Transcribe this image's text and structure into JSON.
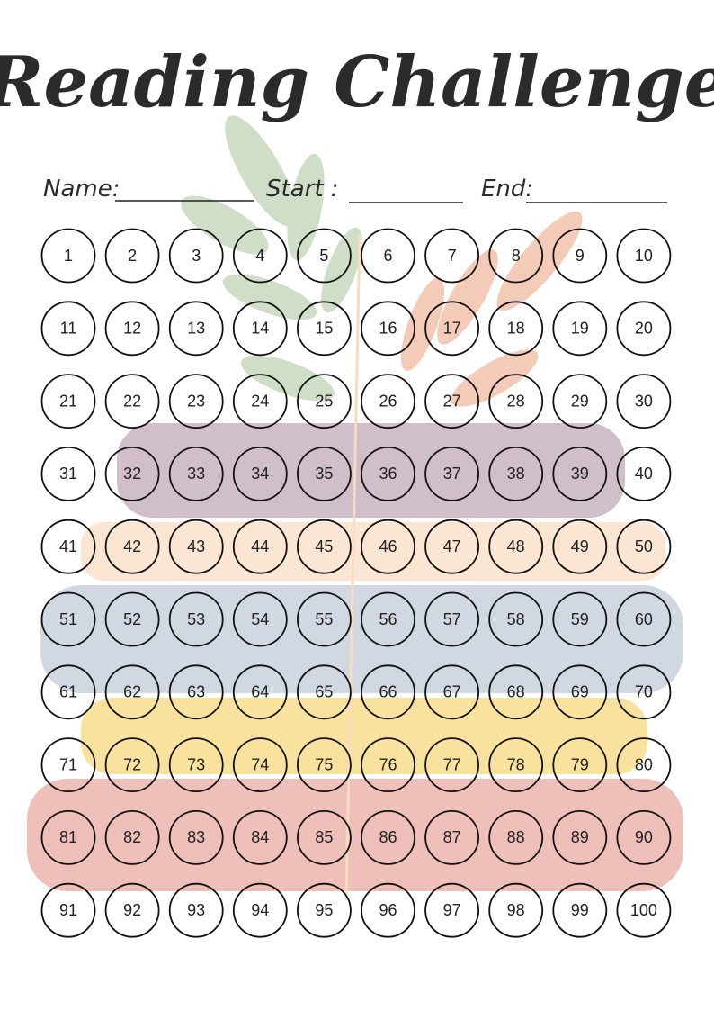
{
  "header": {
    "title": "Reading Challenge"
  },
  "fields": [
    {
      "label": "Name:"
    },
    {
      "label": "Start :"
    },
    {
      "label": "End:"
    }
  ],
  "grid": {
    "cells": [
      1,
      2,
      3,
      4,
      5,
      6,
      7,
      8,
      9,
      10,
      11,
      12,
      13,
      14,
      15,
      16,
      17,
      18,
      19,
      20,
      21,
      22,
      23,
      24,
      25,
      26,
      27,
      28,
      29,
      30,
      31,
      32,
      33,
      34,
      35,
      36,
      37,
      38,
      39,
      40,
      41,
      42,
      43,
      44,
      45,
      46,
      47,
      48,
      49,
      50,
      51,
      52,
      53,
      54,
      55,
      56,
      57,
      58,
      59,
      60,
      61,
      62,
      63,
      64,
      65,
      66,
      67,
      68,
      69,
      70,
      71,
      72,
      73,
      74,
      75,
      76,
      77,
      78,
      79,
      80,
      81,
      82,
      83,
      84,
      85,
      86,
      87,
      88,
      89,
      90,
      91,
      92,
      93,
      94,
      95,
      96,
      97,
      98,
      99,
      100
    ]
  }
}
